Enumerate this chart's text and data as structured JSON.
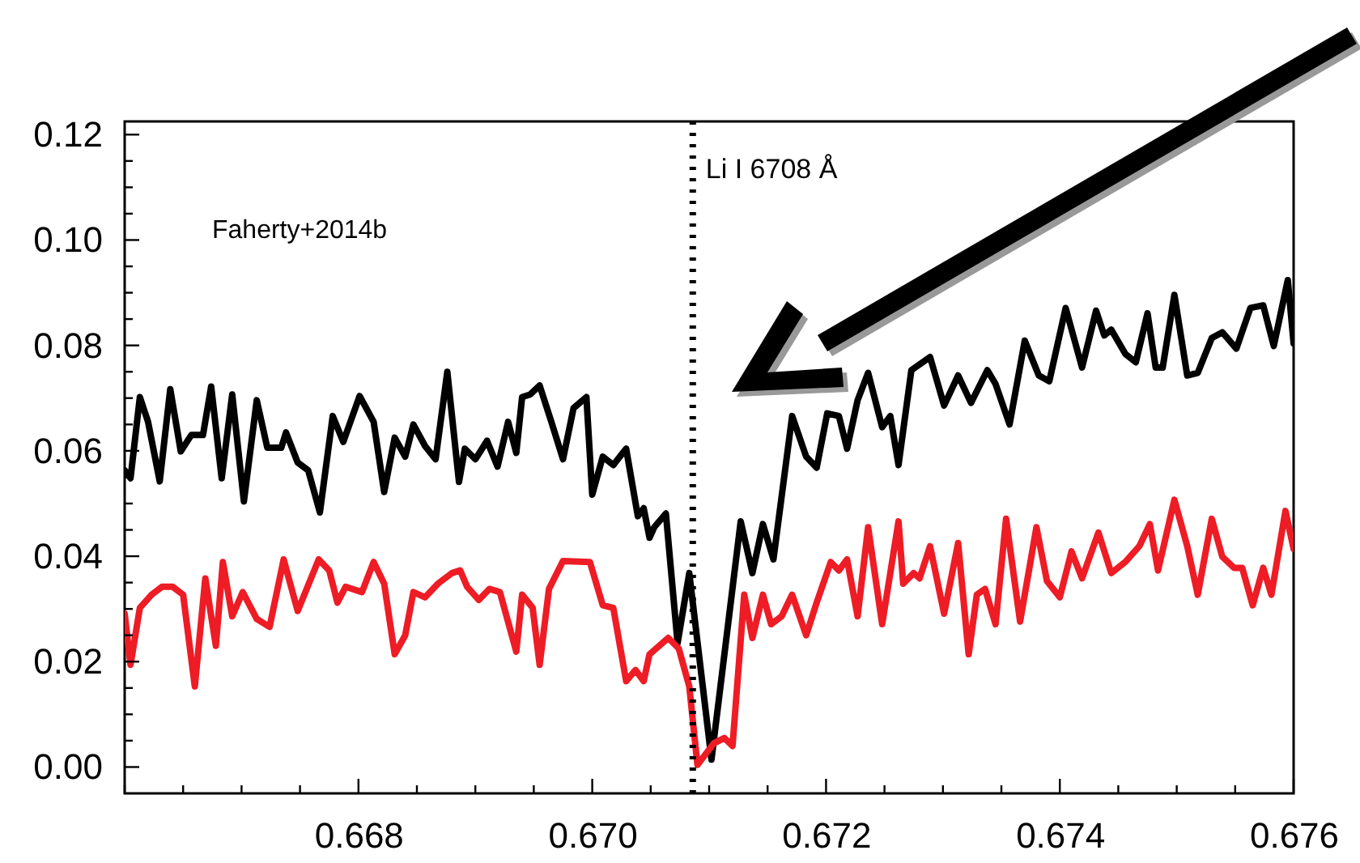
{
  "chart_data": {
    "type": "line",
    "xlim": [
      0.666,
      0.676
    ],
    "xticks": [
      {
        "value": 0.666,
        "label": null
      },
      {
        "value": 0.6665,
        "label": null
      },
      {
        "value": 0.667,
        "label": null
      },
      {
        "value": 0.6675,
        "label": null
      },
      0.668,
      {
        "value": 0.6685,
        "label": null
      },
      {
        "value": 0.669,
        "label": null
      },
      {
        "value": 0.6695,
        "label": null
      },
      {
        "value": 0.67,
        "label": "0.670"
      },
      {
        "value": 0.6705,
        "label": null
      },
      {
        "value": 0.671,
        "label": null
      },
      {
        "value": 0.6715,
        "label": null
      },
      0.672,
      {
        "value": 0.6725,
        "label": null
      },
      {
        "value": 0.673,
        "label": null
      },
      {
        "value": 0.6735,
        "label": null
      },
      0.674,
      {
        "value": 0.6745,
        "label": null
      },
      {
        "value": 0.675,
        "label": null
      },
      {
        "value": 0.6755,
        "label": null
      },
      0.676
    ],
    "ylim": [
      -0.005,
      0.1225
    ],
    "yticks": [
      {
        "value": 0,
        "label": "0.00"
      },
      {
        "value": 0.005,
        "label": null
      },
      {
        "value": 0.01,
        "label": null
      },
      {
        "value": 0.015,
        "label": null
      },
      {
        "value": 0.02,
        "label": "0.02"
      },
      {
        "value": 0.025,
        "label": null
      },
      {
        "value": 0.03,
        "label": null
      },
      {
        "value": 0.035,
        "label": null
      },
      {
        "value": 0.04,
        "label": "0.04"
      },
      {
        "value": 0.045,
        "label": null
      },
      {
        "value": 0.05,
        "label": null
      },
      {
        "value": 0.055,
        "label": null
      },
      {
        "value": 0.06,
        "label": "0.06"
      },
      {
        "value": 0.065,
        "label": null
      },
      {
        "value": 0.07,
        "label": null
      },
      {
        "value": 0.075,
        "label": null
      },
      {
        "value": 0.08,
        "label": "0.08"
      },
      {
        "value": 0.085,
        "label": null
      },
      {
        "value": 0.09,
        "label": null
      },
      {
        "value": 0.095,
        "label": null
      },
      {
        "value": 0.1,
        "label": "0.10"
      },
      {
        "value": 0.105,
        "label": null
      },
      {
        "value": 0.11,
        "label": null
      },
      {
        "value": 0.115,
        "label": null
      },
      {
        "value": 0.12,
        "label": "0.12"
      }
    ],
    "grid": false,
    "marker": "none",
    "line_style": "solid",
    "annotations": [
      "Faherty+2014b"
    ],
    "ref_lines": [
      {
        "axis": "x",
        "value": 0.67086,
        "label": "Li I 6708 Å",
        "color": "#000000",
        "line_style": "dotted"
      }
    ],
    "series": [
      {
        "color": "#000000",
        "x": [
          0.666,
          0.66605,
          0.66613,
          0.6662,
          0.6663,
          0.66639,
          0.66648,
          0.66657,
          0.66667,
          0.66674,
          0.66683,
          0.66692,
          0.66702,
          0.66713,
          0.66722,
          0.66734,
          0.66738,
          0.66748,
          0.66757,
          0.66767,
          0.66778,
          0.66787,
          0.66801,
          0.66813,
          0.66822,
          0.66831,
          0.6684,
          0.66847,
          0.66857,
          0.66866,
          0.66876,
          0.66886,
          0.66891,
          0.669,
          0.6691,
          0.66919,
          0.66928,
          0.66935,
          0.6694,
          0.66947,
          0.66955,
          0.66965,
          0.66975,
          0.66984,
          0.66995,
          0.67,
          0.67009,
          0.67018,
          0.67029,
          0.67039,
          0.67044,
          0.67049,
          0.67053,
          0.67063,
          0.67073,
          0.67083,
          0.67102,
          0.67127,
          0.67137,
          0.67146,
          0.67155,
          0.67171,
          0.67183,
          0.67192,
          0.67201,
          0.67211,
          0.67218,
          0.67227,
          0.67236,
          0.67248,
          0.67255,
          0.67262,
          0.67273,
          0.67289,
          0.67301,
          0.67313,
          0.67324,
          0.67338,
          0.67345,
          0.67357,
          0.6737,
          0.67382,
          0.67391,
          0.67405,
          0.67419,
          0.67431,
          0.67438,
          0.67444,
          0.67456,
          0.67465,
          0.67475,
          0.67482,
          0.67488,
          0.67498,
          0.67509,
          0.67518,
          0.6753,
          0.67539,
          0.67551,
          0.67563,
          0.67574,
          0.67583,
          0.67595,
          0.676
        ],
        "values": [
          0.0563,
          0.0548,
          0.0702,
          0.0655,
          0.0542,
          0.0717,
          0.0599,
          0.063,
          0.063,
          0.0722,
          0.0548,
          0.0707,
          0.0504,
          0.0696,
          0.0606,
          0.0606,
          0.0635,
          0.0578,
          0.0563,
          0.0483,
          0.0666,
          0.0617,
          0.0704,
          0.0655,
          0.0522,
          0.0625,
          0.0589,
          0.065,
          0.0609,
          0.0584,
          0.075,
          0.0541,
          0.0604,
          0.0584,
          0.0619,
          0.057,
          0.0655,
          0.0596,
          0.0702,
          0.0707,
          0.0724,
          0.0655,
          0.0584,
          0.0681,
          0.0702,
          0.0517,
          0.0589,
          0.0573,
          0.0604,
          0.0476,
          0.0491,
          0.0435,
          0.0455,
          0.0481,
          0.0235,
          0.0368,
          0.0014,
          0.0466,
          0.0368,
          0.0461,
          0.0394,
          0.0666,
          0.0589,
          0.0568,
          0.0671,
          0.0666,
          0.0604,
          0.0696,
          0.0748,
          0.0645,
          0.0666,
          0.0573,
          0.0753,
          0.0778,
          0.0686,
          0.0743,
          0.0691,
          0.0753,
          0.0727,
          0.065,
          0.0809,
          0.0743,
          0.0732,
          0.0871,
          0.0758,
          0.0866,
          0.0819,
          0.083,
          0.0784,
          0.0768,
          0.0861,
          0.0758,
          0.0758,
          0.0896,
          0.0743,
          0.0748,
          0.0814,
          0.0825,
          0.0794,
          0.0871,
          0.0876,
          0.0799,
          0.0924,
          0.0804
        ]
      },
      {
        "color": "#ee1c25",
        "x": [
          0.666,
          0.66605,
          0.66613,
          0.66623,
          0.66632,
          0.66641,
          0.6665,
          0.6666,
          0.66669,
          0.66678,
          0.66684,
          0.66692,
          0.66701,
          0.66713,
          0.66724,
          0.66736,
          0.66748,
          0.66766,
          0.66775,
          0.66782,
          0.66789,
          0.66803,
          0.66813,
          0.66822,
          0.66831,
          0.6684,
          0.66847,
          0.66857,
          0.66868,
          0.6688,
          0.66887,
          0.66893,
          0.66903,
          0.66912,
          0.66921,
          0.66935,
          0.6694,
          0.66949,
          0.66955,
          0.66963,
          0.66975,
          0.66998,
          0.67009,
          0.67018,
          0.67029,
          0.67037,
          0.67044,
          0.67049,
          0.67065,
          0.67074,
          0.67083,
          0.6709,
          0.67104,
          0.67113,
          0.6712,
          0.6713,
          0.67137,
          0.67146,
          0.67153,
          0.67162,
          0.67171,
          0.67183,
          0.67192,
          0.67204,
          0.67211,
          0.67218,
          0.67227,
          0.67236,
          0.67248,
          0.67262,
          0.67266,
          0.67275,
          0.6728,
          0.67289,
          0.67301,
          0.67313,
          0.67322,
          0.67329,
          0.67336,
          0.67345,
          0.67354,
          0.67366,
          0.6738,
          0.67389,
          0.674,
          0.6741,
          0.67419,
          0.67433,
          0.67444,
          0.67456,
          0.67468,
          0.67477,
          0.67484,
          0.67498,
          0.67509,
          0.67518,
          0.6753,
          0.67539,
          0.67549,
          0.67556,
          0.67565,
          0.67574,
          0.67581,
          0.67593,
          0.676
        ],
        "values": [
          0.0291,
          0.0194,
          0.0302,
          0.0327,
          0.0342,
          0.0342,
          0.0327,
          0.0153,
          0.0358,
          0.023,
          0.0389,
          0.0286,
          0.0332,
          0.0281,
          0.0266,
          0.0394,
          0.0296,
          0.0394,
          0.0373,
          0.0312,
          0.0342,
          0.0332,
          0.0389,
          0.0348,
          0.0214,
          0.025,
          0.0332,
          0.0322,
          0.0348,
          0.0368,
          0.0373,
          0.0342,
          0.0317,
          0.0338,
          0.0332,
          0.0219,
          0.0327,
          0.0302,
          0.0194,
          0.0338,
          0.0391,
          0.0389,
          0.0307,
          0.0302,
          0.0163,
          0.0184,
          0.0163,
          0.0214,
          0.0245,
          0.0225,
          0.0153,
          0.0004,
          0.0045,
          0.0055,
          0.004,
          0.0327,
          0.0245,
          0.0327,
          0.0271,
          0.0286,
          0.0327,
          0.025,
          0.0312,
          0.0389,
          0.0373,
          0.0394,
          0.0286,
          0.0455,
          0.0271,
          0.0466,
          0.0348,
          0.0368,
          0.0358,
          0.0419,
          0.0291,
          0.0425,
          0.0214,
          0.0327,
          0.0338,
          0.0271,
          0.0471,
          0.0276,
          0.0455,
          0.0353,
          0.0322,
          0.0409,
          0.0358,
          0.0445,
          0.0368,
          0.0389,
          0.0419,
          0.0461,
          0.0373,
          0.0507,
          0.0419,
          0.0327,
          0.0471,
          0.0399,
          0.0378,
          0.0378,
          0.0307,
          0.0378,
          0.0327,
          0.0486,
          0.0414
        ]
      }
    ]
  }
}
